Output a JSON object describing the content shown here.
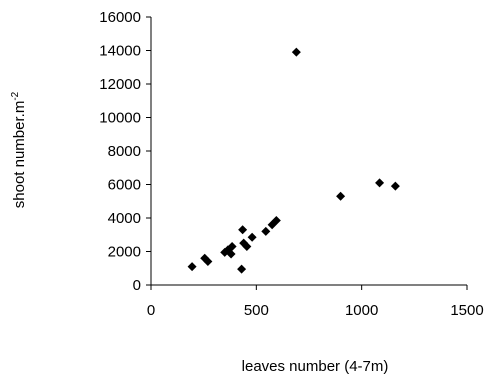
{
  "chart_data": {
    "type": "scatter",
    "title": "",
    "xlabel": "leaves number (4-7m)",
    "ylabel": "shoot number.m",
    "ylabel_superscript": "-2",
    "xlim": [
      0,
      1500
    ],
    "ylim": [
      0,
      16000
    ],
    "xticks": [
      0,
      500,
      1000,
      1500
    ],
    "yticks": [
      0,
      2000,
      4000,
      6000,
      8000,
      10000,
      12000,
      14000,
      16000
    ],
    "grid": false,
    "legend": "none",
    "marker": "diamond",
    "marker_color": "#000000",
    "series": [
      {
        "points": [
          [
            195,
            1100
          ],
          [
            255,
            1600
          ],
          [
            270,
            1400
          ],
          [
            350,
            1950
          ],
          [
            365,
            2100
          ],
          [
            380,
            1850
          ],
          [
            385,
            2300
          ],
          [
            430,
            950
          ],
          [
            435,
            3300
          ],
          [
            440,
            2500
          ],
          [
            455,
            2300
          ],
          [
            480,
            2850
          ],
          [
            545,
            3200
          ],
          [
            575,
            3600
          ],
          [
            595,
            3850
          ],
          [
            690,
            13900
          ],
          [
            900,
            5300
          ],
          [
            1085,
            6100
          ],
          [
            1160,
            5900
          ]
        ]
      }
    ]
  }
}
